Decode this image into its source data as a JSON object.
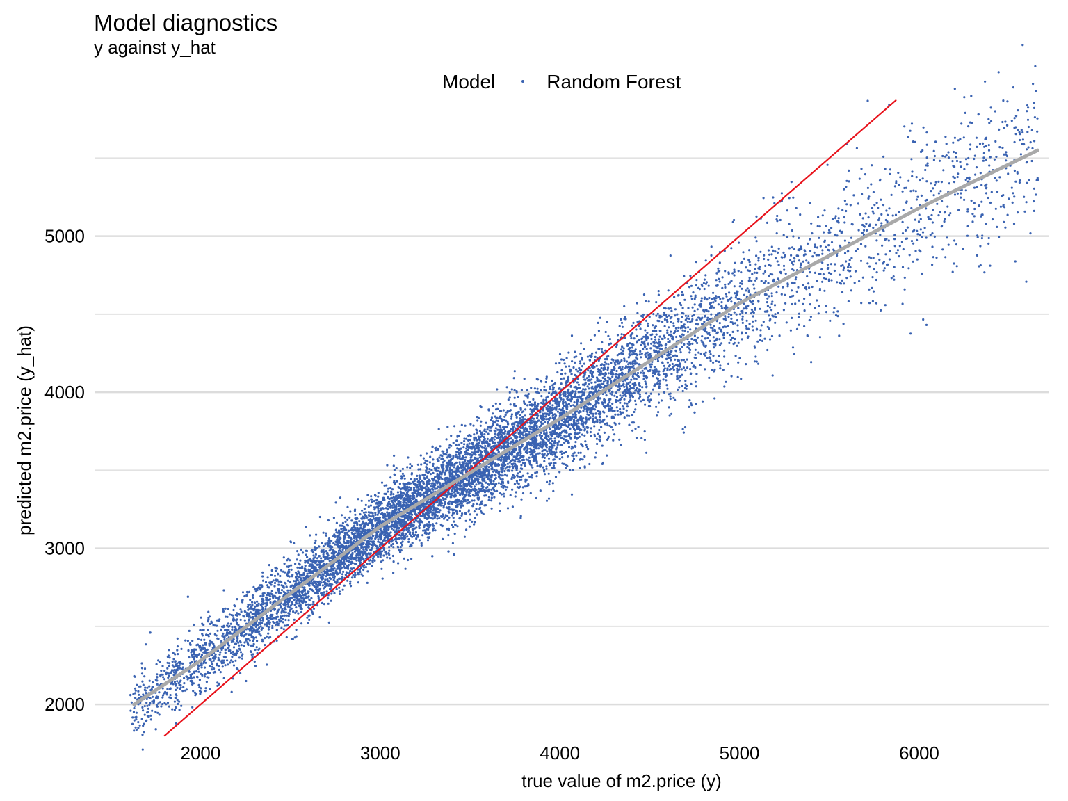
{
  "chart_data": {
    "type": "scatter",
    "title": "Model diagnostics",
    "subtitle": "y against y_hat",
    "legend": {
      "title": "Model",
      "position": "top",
      "entries": [
        "Random Forest"
      ]
    },
    "xlabel": "true value of m2.price (y)",
    "ylabel": "predicted m2.price (y_hat)",
    "xlim": [
      1410,
      6720
    ],
    "ylim": [
      1800,
      5800
    ],
    "xticks": [
      2000,
      3000,
      4000,
      5000,
      6000
    ],
    "yticks": [
      2000,
      3000,
      4000,
      5000
    ],
    "grid": {
      "horizontal": true,
      "vertical": false,
      "minor_y": true
    },
    "series": [
      {
        "name": "Random Forest",
        "color": "#3a63b2",
        "kind": "points",
        "n_points": 9000,
        "description_of_relation": "y_hat ≈ 1090 + 0.69·y, residual spread ≈ 110–280"
      }
    ],
    "reference_lines": [
      {
        "kind": "identity",
        "color": "#e8121b",
        "x": [
          1800,
          5870
        ],
        "y": [
          1800,
          5870
        ]
      },
      {
        "kind": "smooth",
        "color": "#a9a9a9",
        "x": [
          1630,
          2000,
          3000,
          4000,
          5000,
          6000,
          6660
        ],
        "y": [
          2000,
          2280,
          3140,
          3830,
          4570,
          5180,
          5550
        ]
      }
    ],
    "sample_points": [
      [
        6330,
        5780
      ],
      [
        6540,
        5770
      ],
      [
        6490,
        5710
      ],
      [
        6550,
        5680
      ],
      [
        6010,
        5540
      ],
      [
        6600,
        5340
      ],
      [
        6660,
        5360
      ],
      [
        4640,
        3950
      ],
      [
        4540,
        3850
      ],
      [
        4730,
        3930
      ],
      [
        4750,
        3870
      ],
      [
        3290,
        2950
      ],
      [
        3380,
        2980
      ],
      [
        3410,
        2960
      ],
      [
        1930,
        2690
      ],
      [
        1720,
        2460
      ],
      [
        1610,
        2060
      ],
      [
        1650,
        2020
      ],
      [
        1780,
        2130
      ]
    ]
  }
}
